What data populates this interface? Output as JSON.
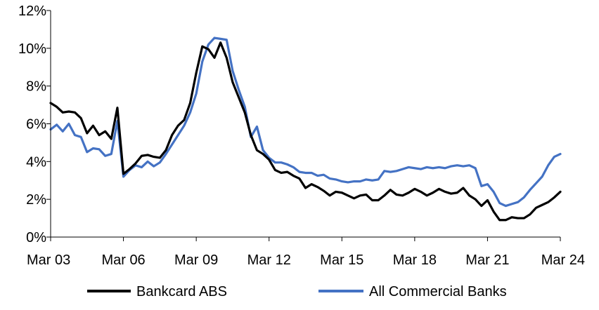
{
  "chart_data": {
    "type": "line",
    "title": "",
    "xlabel": "",
    "ylabel": "",
    "x_range": [
      2003.0,
      2024.0
    ],
    "ylim": [
      0,
      12
    ],
    "y_ticks": [
      0,
      2,
      4,
      6,
      8,
      10,
      12
    ],
    "y_tick_labels": [
      "0%",
      "2%",
      "4%",
      "6%",
      "8%",
      "10%",
      "12%"
    ],
    "x_ticks": [
      2003,
      2006,
      2009,
      2012,
      2015,
      2018,
      2021,
      2024
    ],
    "x_tick_labels": [
      "Mar 03",
      "Mar 06",
      "Mar 09",
      "Mar 12",
      "Mar 15",
      "Mar 18",
      "Mar 21",
      "Mar 24"
    ],
    "grid": false,
    "legend_position": "bottom",
    "series": [
      {
        "name": "Bankcard ABS",
        "color": "#000000",
        "x": [
          2003.0,
          2003.25,
          2003.5,
          2003.75,
          2004.0,
          2004.25,
          2004.5,
          2004.75,
          2005.0,
          2005.25,
          2005.5,
          2005.75,
          2006.0,
          2006.25,
          2006.5,
          2006.75,
          2007.0,
          2007.25,
          2007.5,
          2007.75,
          2008.0,
          2008.25,
          2008.5,
          2008.75,
          2009.0,
          2009.25,
          2009.5,
          2009.75,
          2010.0,
          2010.25,
          2010.5,
          2010.75,
          2011.0,
          2011.25,
          2011.5,
          2011.75,
          2012.0,
          2012.25,
          2012.5,
          2012.75,
          2013.0,
          2013.25,
          2013.5,
          2013.75,
          2014.0,
          2014.25,
          2014.5,
          2014.75,
          2015.0,
          2015.25,
          2015.5,
          2015.75,
          2016.0,
          2016.25,
          2016.5,
          2016.75,
          2017.0,
          2017.25,
          2017.5,
          2017.75,
          2018.0,
          2018.25,
          2018.5,
          2018.75,
          2019.0,
          2019.25,
          2019.5,
          2019.75,
          2020.0,
          2020.25,
          2020.5,
          2020.75,
          2021.0,
          2021.25,
          2021.5,
          2021.75,
          2022.0,
          2022.25,
          2022.5,
          2022.75,
          2023.0,
          2023.25,
          2023.5,
          2023.75,
          2024.0
        ],
        "values": [
          7.1,
          6.9,
          6.6,
          6.65,
          6.6,
          6.3,
          5.5,
          5.9,
          5.4,
          5.6,
          5.2,
          6.85,
          3.35,
          3.6,
          3.9,
          4.3,
          4.35,
          4.25,
          4.2,
          4.6,
          5.4,
          5.9,
          6.2,
          7.1,
          8.7,
          10.1,
          9.95,
          9.5,
          10.3,
          9.5,
          8.2,
          7.4,
          6.6,
          5.4,
          4.6,
          4.4,
          4.1,
          3.55,
          3.4,
          3.45,
          3.25,
          3.1,
          2.6,
          2.8,
          2.65,
          2.45,
          2.2,
          2.4,
          2.35,
          2.2,
          2.05,
          2.2,
          2.25,
          1.95,
          1.95,
          2.2,
          2.5,
          2.25,
          2.2,
          2.35,
          2.55,
          2.4,
          2.2,
          2.35,
          2.55,
          2.4,
          2.3,
          2.35,
          2.6,
          2.2,
          2.0,
          1.65,
          1.95,
          1.35,
          0.9,
          0.9,
          1.05,
          1.0,
          1.0,
          1.2,
          1.55,
          1.7,
          1.85,
          2.1,
          2.4
        ]
      },
      {
        "name": "All Commercial Banks",
        "color": "#4472C4",
        "x": [
          2003.0,
          2003.25,
          2003.5,
          2003.75,
          2004.0,
          2004.25,
          2004.5,
          2004.75,
          2005.0,
          2005.25,
          2005.5,
          2005.75,
          2006.0,
          2006.25,
          2006.5,
          2006.75,
          2007.0,
          2007.25,
          2007.5,
          2007.75,
          2008.0,
          2008.25,
          2008.5,
          2008.75,
          2009.0,
          2009.25,
          2009.5,
          2009.75,
          2010.0,
          2010.25,
          2010.5,
          2010.75,
          2011.0,
          2011.25,
          2011.5,
          2011.75,
          2012.0,
          2012.25,
          2012.5,
          2012.75,
          2013.0,
          2013.25,
          2013.5,
          2013.75,
          2014.0,
          2014.25,
          2014.5,
          2014.75,
          2015.0,
          2015.25,
          2015.5,
          2015.75,
          2016.0,
          2016.25,
          2016.5,
          2016.75,
          2017.0,
          2017.25,
          2017.5,
          2017.75,
          2018.0,
          2018.25,
          2018.5,
          2018.75,
          2019.0,
          2019.25,
          2019.5,
          2019.75,
          2020.0,
          2020.25,
          2020.5,
          2020.75,
          2021.0,
          2021.25,
          2021.5,
          2021.75,
          2022.0,
          2022.25,
          2022.5,
          2022.75,
          2023.0,
          2023.25,
          2023.5,
          2023.75,
          2024.0
        ],
        "values": [
          5.7,
          5.95,
          5.6,
          6.0,
          5.4,
          5.3,
          4.5,
          4.7,
          4.65,
          4.3,
          4.4,
          6.15,
          3.2,
          3.55,
          3.8,
          3.7,
          4.0,
          3.75,
          3.95,
          4.4,
          4.9,
          5.4,
          5.9,
          6.6,
          7.6,
          9.3,
          10.2,
          10.55,
          10.5,
          10.45,
          8.8,
          7.8,
          6.9,
          5.3,
          5.85,
          4.6,
          4.2,
          3.95,
          3.95,
          3.85,
          3.7,
          3.45,
          3.4,
          3.4,
          3.25,
          3.3,
          3.1,
          3.05,
          2.95,
          2.9,
          2.95,
          2.95,
          3.05,
          3.0,
          3.05,
          3.5,
          3.45,
          3.5,
          3.6,
          3.7,
          3.65,
          3.6,
          3.7,
          3.65,
          3.7,
          3.65,
          3.75,
          3.8,
          3.75,
          3.8,
          3.65,
          2.7,
          2.8,
          2.4,
          1.8,
          1.65,
          1.75,
          1.85,
          2.1,
          2.5,
          2.85,
          3.2,
          3.8,
          4.25,
          4.4
        ]
      }
    ]
  }
}
